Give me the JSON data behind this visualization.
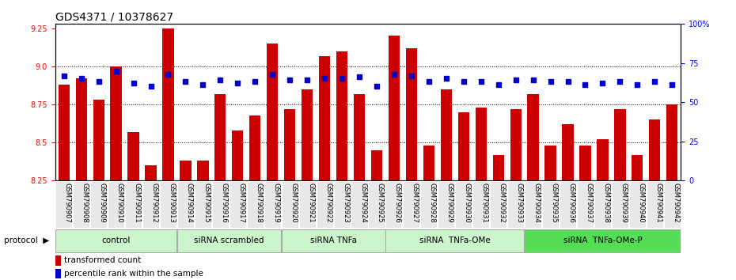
{
  "title": "GDS4371 / 10378627",
  "samples": [
    "GSM790907",
    "GSM790908",
    "GSM790909",
    "GSM790910",
    "GSM790911",
    "GSM790912",
    "GSM790913",
    "GSM790914",
    "GSM790915",
    "GSM790916",
    "GSM790917",
    "GSM790918",
    "GSM790919",
    "GSM790920",
    "GSM790921",
    "GSM790922",
    "GSM790923",
    "GSM790924",
    "GSM790925",
    "GSM790926",
    "GSM790927",
    "GSM790928",
    "GSM790929",
    "GSM790930",
    "GSM790931",
    "GSM790932",
    "GSM790933",
    "GSM790934",
    "GSM790935",
    "GSM790936",
    "GSM790937",
    "GSM790938",
    "GSM790939",
    "GSM790940",
    "GSM790941",
    "GSM790942"
  ],
  "bar_values": [
    8.88,
    8.92,
    8.78,
    9.0,
    8.57,
    8.35,
    9.25,
    8.38,
    8.38,
    8.82,
    8.58,
    8.68,
    9.15,
    8.72,
    8.85,
    9.07,
    9.1,
    8.82,
    8.45,
    9.2,
    9.12,
    8.48,
    8.85,
    8.7,
    8.73,
    8.42,
    8.72,
    8.82,
    8.48,
    8.62,
    8.48,
    8.52,
    8.72,
    8.42,
    8.65,
    8.75
  ],
  "percentile_values": [
    67,
    65,
    63,
    70,
    62,
    60,
    68,
    63,
    61,
    64,
    62,
    63,
    68,
    64,
    64,
    65,
    65,
    66,
    60,
    68,
    67,
    63,
    65,
    63,
    63,
    61,
    64,
    64,
    63,
    63,
    61,
    62,
    63,
    61,
    63,
    61
  ],
  "groups": [
    {
      "label": "control",
      "start": 0,
      "end": 7,
      "light": true
    },
    {
      "label": "siRNA scrambled",
      "start": 7,
      "end": 13,
      "light": true
    },
    {
      "label": "siRNA TNFa",
      "start": 13,
      "end": 19,
      "light": true
    },
    {
      "label": "siRNA  TNFa-OMe",
      "start": 19,
      "end": 27,
      "light": true
    },
    {
      "label": "siRNA  TNFa-OMe-P",
      "start": 27,
      "end": 36,
      "light": false
    }
  ],
  "color_light_green": "#ccf5cc",
  "color_dark_green": "#55dd55",
  "bar_color": "#cc0000",
  "dot_color": "#0000cc",
  "ylim_left": [
    8.25,
    9.28
  ],
  "ylim_right": [
    0,
    100
  ],
  "yticks_left": [
    8.25,
    8.5,
    8.75,
    9.0,
    9.25
  ],
  "yticks_right": [
    0,
    25,
    50,
    75,
    100
  ],
  "ytick_labels_right": [
    "0",
    "25",
    "50",
    "75",
    "100%"
  ],
  "grid_lines": [
    8.5,
    8.75,
    9.0
  ],
  "bar_width": 0.65,
  "title_fontsize": 10,
  "tick_fontsize": 7,
  "sample_fontsize": 6,
  "group_fontsize": 7.5,
  "legend_fontsize": 7.5
}
